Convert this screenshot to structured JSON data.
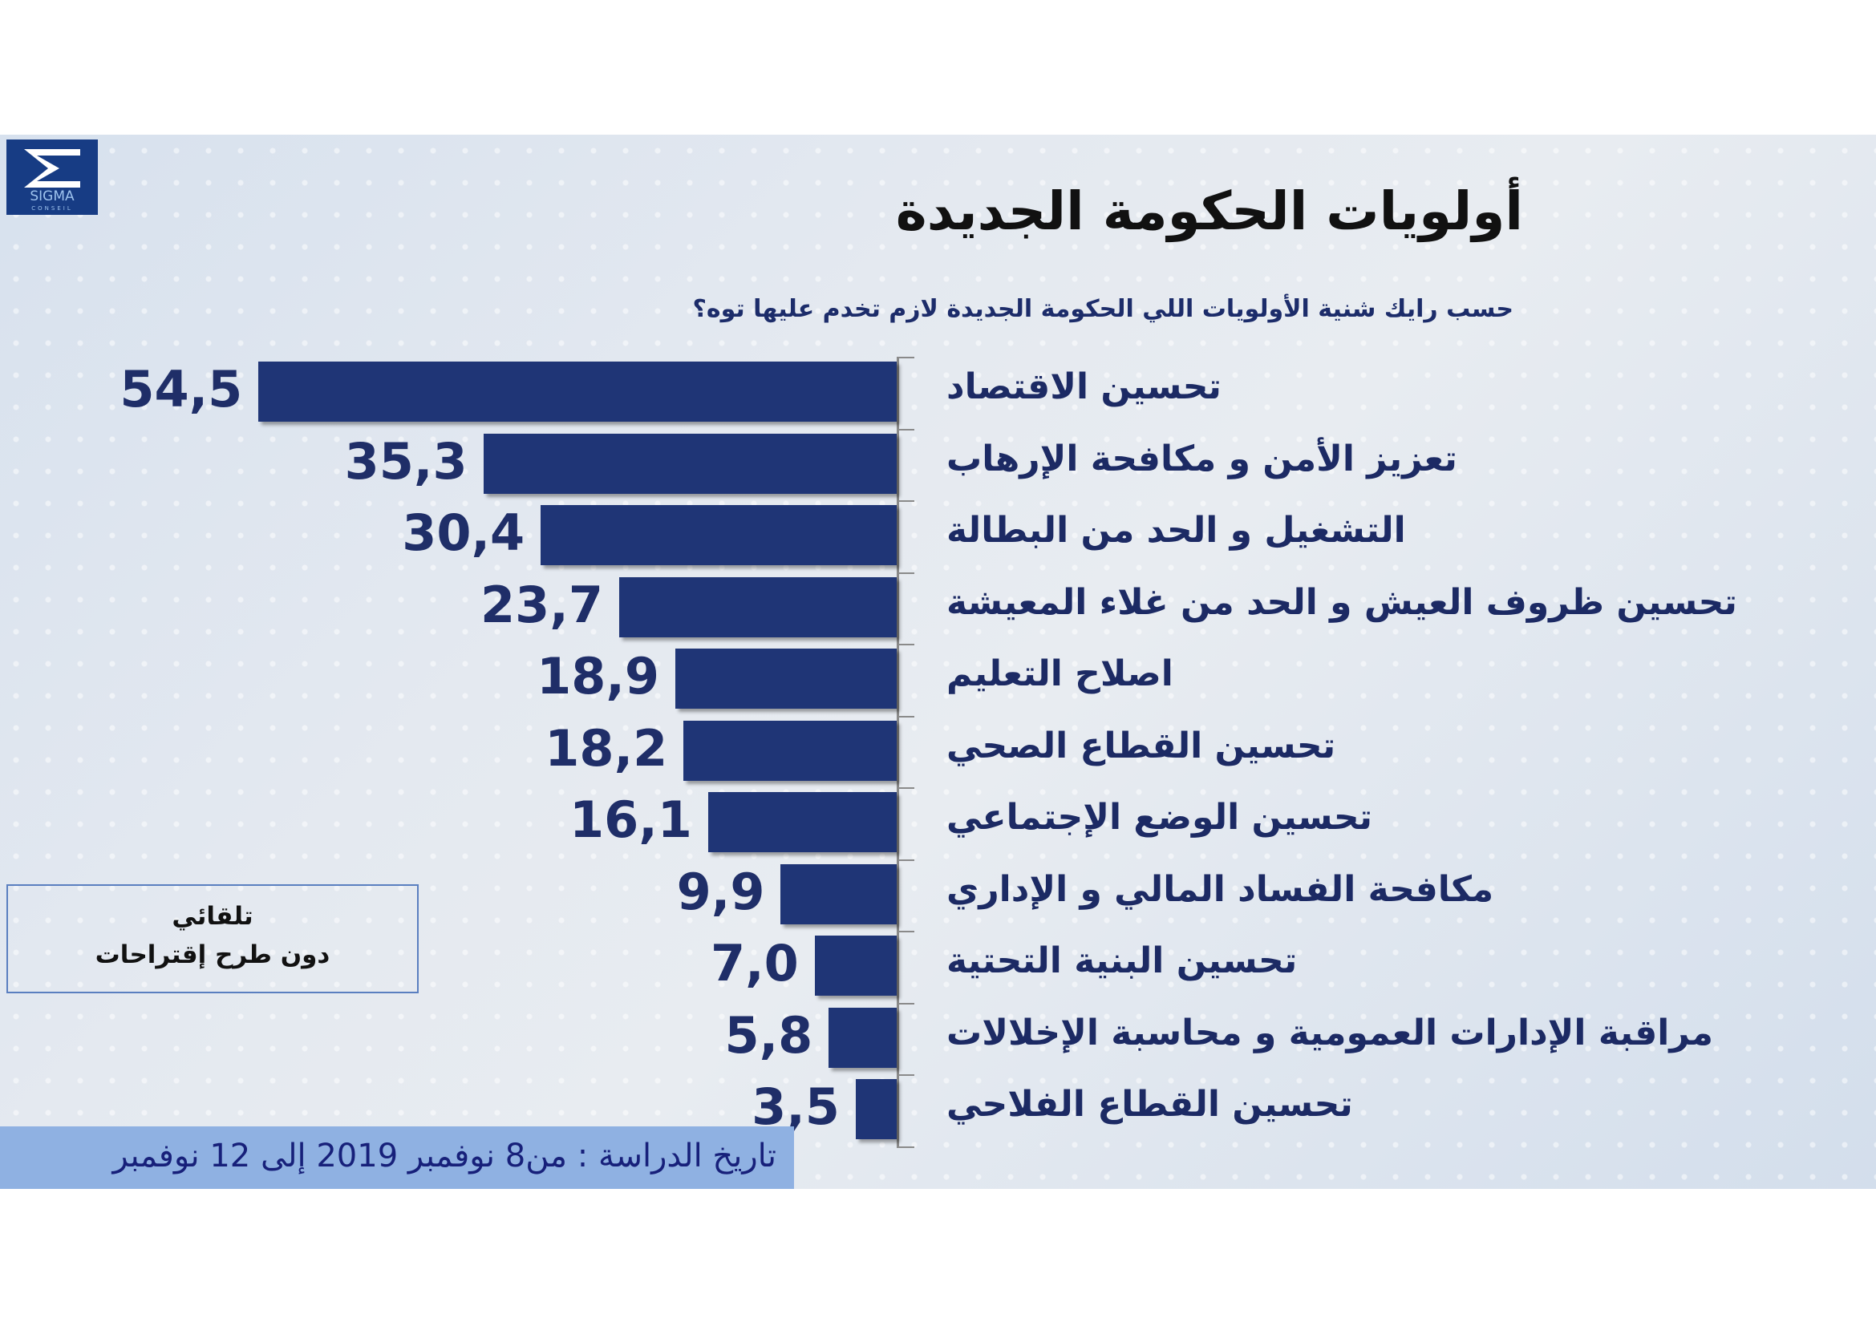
{
  "logo": {
    "text": "SIGMA",
    "subtext": "CONSEIL"
  },
  "colors": {
    "bar": "#1f3576",
    "value": "#1f2e68",
    "footer_bg": "#8fb1e2"
  },
  "chart_data": {
    "type": "bar",
    "orientation": "horizontal",
    "title": "أولويات الحكومة الجديدة",
    "subtitle": "حسب رايك شنية  الأولويات اللي الحكومة الجديدة لازم تخدم عليها توه؟",
    "categories": [
      "تحسين الاقتصاد",
      "تعزيز الأمن  و  مكافحة الإرهاب",
      "التشغيل و الحد من البطالة",
      "تحسين ظروف العيش و الحد من غلاء المعيشة",
      "اصلاح التعليم",
      "تحسين القطاع الصحي",
      "تحسين الوضع الإجتماعي",
      "مكافحة الفساد المالي و الإداري",
      "تحسين البنية التحتية",
      "مراقبة الإدارات العمومية و محاسبة الإخلالات",
      "تحسين القطاع الفلاحي"
    ],
    "values": [
      54.5,
      35.3,
      30.4,
      23.7,
      18.9,
      18.2,
      16.1,
      9.9,
      7.0,
      5.8,
      3.5
    ],
    "value_labels": [
      "54,5",
      "35,3",
      "30,4",
      "23,7",
      "18,9",
      "18,2",
      "16,1",
      "9,9",
      "7,0",
      "5,8",
      "3,5"
    ],
    "unit": "%",
    "grid": false
  },
  "note": {
    "line1": "تلقائي",
    "line2": "دون طرح إقتراحات"
  },
  "footer": "تاريخ الدراسة : من8  نوفمبر 2019 إلى 12 نوفمبر"
}
